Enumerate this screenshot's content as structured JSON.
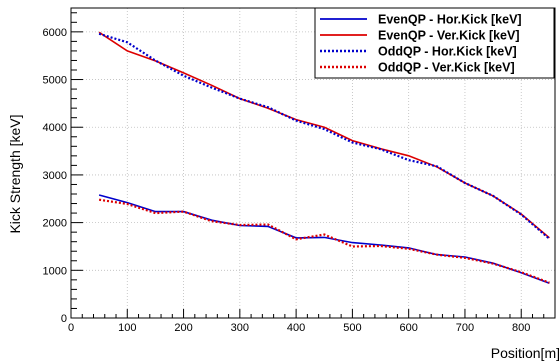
{
  "chart_data": {
    "type": "line",
    "xlabel": "Position[m]",
    "ylabel": "Kick Strength [keV]",
    "xlim": [
      0,
      860
    ],
    "ylim": [
      0,
      6500
    ],
    "x_ticks": [
      0,
      100,
      200,
      300,
      400,
      500,
      600,
      700,
      800
    ],
    "y_ticks": [
      0,
      1000,
      2000,
      3000,
      4000,
      5000,
      6000
    ],
    "grid": true,
    "legend_position": "top-right",
    "series": [
      {
        "name": "EvenQP  - Hor.Kick [keV]",
        "color": "#0000cc",
        "style": "solid",
        "x": [
          50,
          100,
          150,
          200,
          250,
          300,
          350,
          400,
          450,
          500,
          550,
          600,
          650,
          700,
          750,
          800,
          850
        ],
        "y": [
          2580,
          2420,
          2230,
          2230,
          2050,
          1940,
          1920,
          1680,
          1690,
          1580,
          1530,
          1470,
          1330,
          1280,
          1150,
          950,
          730
        ]
      },
      {
        "name": "EvenQP  - Ver.Kick [keV]",
        "color": "#dd0000",
        "style": "solid",
        "x": [
          50,
          100,
          150,
          200,
          250,
          300,
          350,
          400,
          450,
          500,
          550,
          600,
          650,
          700,
          750,
          800,
          850
        ],
        "y": [
          5990,
          5600,
          5390,
          5140,
          4880,
          4600,
          4400,
          4160,
          4000,
          3720,
          3550,
          3400,
          3170,
          2830,
          2560,
          2180,
          1680
        ]
      },
      {
        "name": "OddQP  - Hor.Kick [keV]",
        "color": "#0000cc",
        "style": "dotted",
        "x": [
          50,
          100,
          150,
          200,
          250,
          300,
          350,
          400,
          450,
          500,
          550,
          600,
          650,
          700,
          750,
          800,
          850
        ],
        "y": [
          5960,
          5780,
          5400,
          5080,
          4830,
          4600,
          4420,
          4140,
          3960,
          3680,
          3540,
          3310,
          3180,
          2830,
          2560,
          2170,
          1660
        ]
      },
      {
        "name": "OddQP  - Ver.Kick [keV]",
        "color": "#dd0000",
        "style": "dotted",
        "x": [
          50,
          100,
          150,
          200,
          250,
          300,
          350,
          400,
          450,
          500,
          550,
          600,
          650,
          700,
          750,
          800,
          850
        ],
        "y": [
          2480,
          2390,
          2200,
          2230,
          2030,
          1950,
          1960,
          1650,
          1750,
          1500,
          1510,
          1450,
          1330,
          1260,
          1140,
          960,
          740
        ]
      }
    ]
  }
}
